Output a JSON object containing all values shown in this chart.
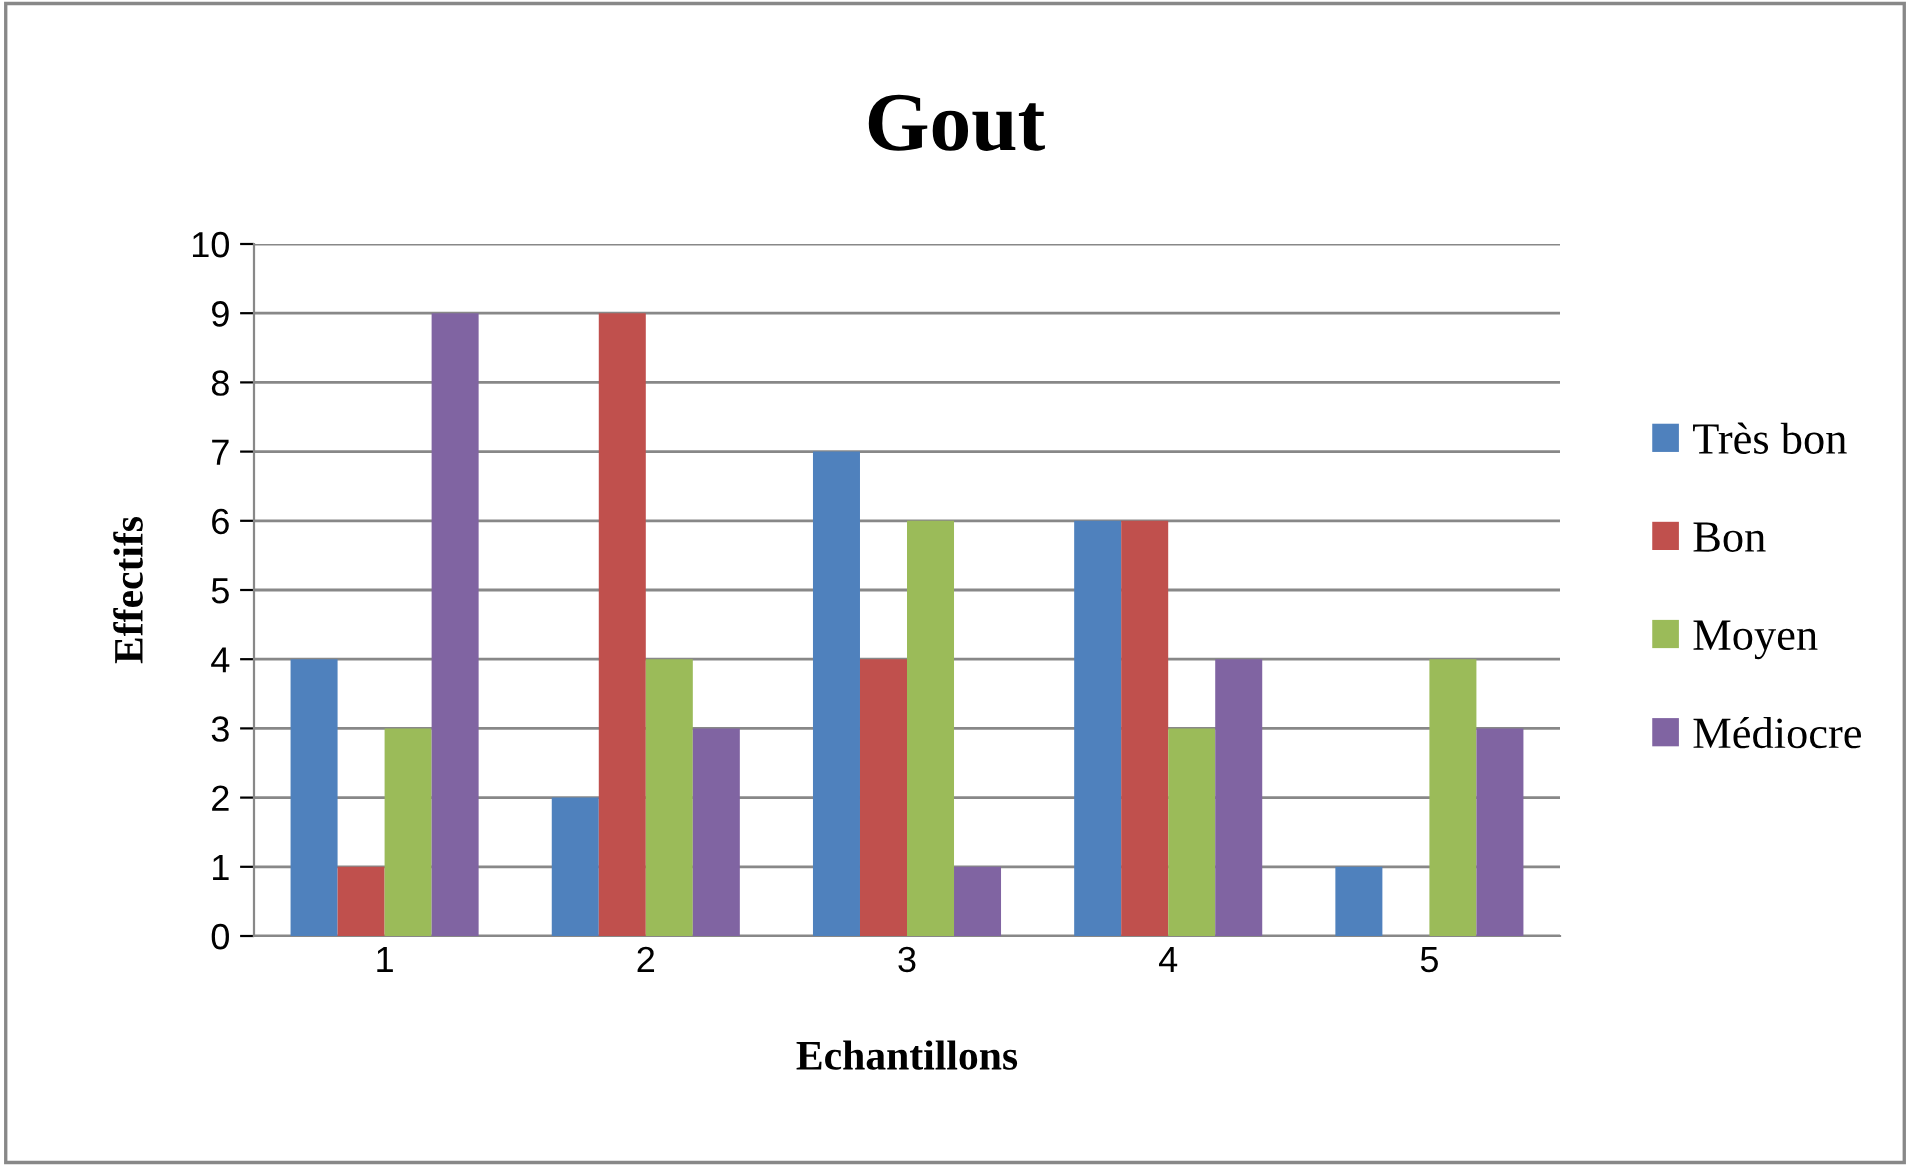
{
  "chart_data": {
    "type": "bar",
    "title": "Gout",
    "xlabel": "Echantillons",
    "ylabel": "Effectifs",
    "categories": [
      "1",
      "2",
      "3",
      "4",
      "5"
    ],
    "series": [
      {
        "name": "Très bon",
        "color": "#4f81bd",
        "values": [
          4,
          2,
          7,
          6,
          1
        ]
      },
      {
        "name": "Bon",
        "color": "#c0504d",
        "values": [
          1,
          9,
          4,
          6,
          0
        ]
      },
      {
        "name": "Moyen",
        "color": "#9bbb59",
        "values": [
          3,
          4,
          6,
          3,
          4
        ]
      },
      {
        "name": "Médiocre",
        "color": "#8064a2",
        "values": [
          9,
          3,
          1,
          4,
          3
        ]
      }
    ],
    "ylim": [
      0,
      10
    ],
    "yticks": [
      0,
      1,
      2,
      3,
      4,
      5,
      6,
      7,
      8,
      9,
      10
    ],
    "grid": "y",
    "legend": "right"
  }
}
